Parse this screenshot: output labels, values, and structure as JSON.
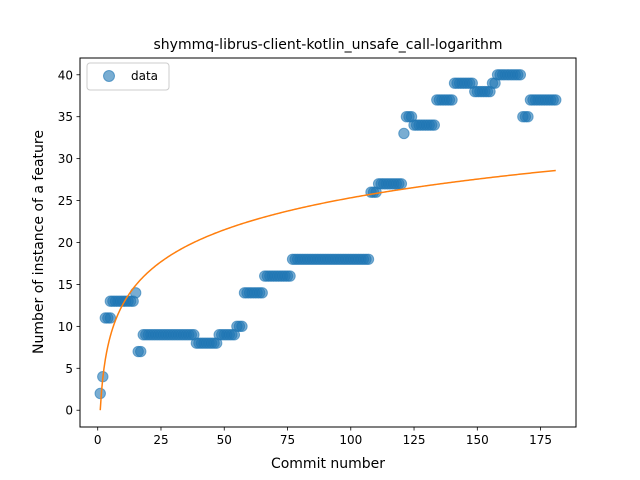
{
  "chart_data": {
    "type": "scatter",
    "title": "shymmq-librus-client-kotlin_unsafe_call-logarithm",
    "xlabel": "Commit number",
    "ylabel": "Number of instance of a feature",
    "xlim": [
      -7,
      189
    ],
    "ylim": [
      -2,
      42
    ],
    "xticks": [
      0,
      25,
      50,
      75,
      100,
      125,
      150,
      175
    ],
    "yticks": [
      0,
      5,
      10,
      15,
      20,
      25,
      30,
      35,
      40
    ],
    "grid": false,
    "legend": {
      "placement": "upper-left",
      "entries": [
        "data"
      ]
    },
    "colors": {
      "data": "#1f77b4",
      "fit": "#ff7f0e"
    },
    "series": [
      {
        "name": "data",
        "kind": "scatter",
        "segments": [
          [
            1,
            1,
            2
          ],
          [
            2,
            2,
            4
          ],
          [
            3,
            4,
            11
          ],
          [
            5,
            5,
            11
          ],
          [
            5,
            14,
            13
          ],
          [
            15,
            15,
            14
          ],
          [
            16,
            17,
            7
          ],
          [
            18,
            38,
            9
          ],
          [
            39,
            47,
            8
          ],
          [
            48,
            54,
            9
          ],
          [
            55,
            57,
            10
          ],
          [
            58,
            65,
            14
          ],
          [
            66,
            76,
            16
          ],
          [
            77,
            107,
            18
          ],
          [
            108,
            110,
            26
          ],
          [
            111,
            120,
            27
          ],
          [
            121,
            121,
            33
          ],
          [
            122,
            124,
            35
          ],
          [
            125,
            133,
            34
          ],
          [
            134,
            140,
            37
          ],
          [
            141,
            148,
            39
          ],
          [
            149,
            155,
            38
          ],
          [
            156,
            157,
            39
          ],
          [
            158,
            167,
            40
          ],
          [
            168,
            170,
            35
          ],
          [
            171,
            181,
            37
          ]
        ]
      },
      {
        "name": "",
        "kind": "line",
        "model": "logarithmic",
        "a": 5.5,
        "b": 0,
        "x_range": [
          1,
          181
        ]
      }
    ]
  }
}
